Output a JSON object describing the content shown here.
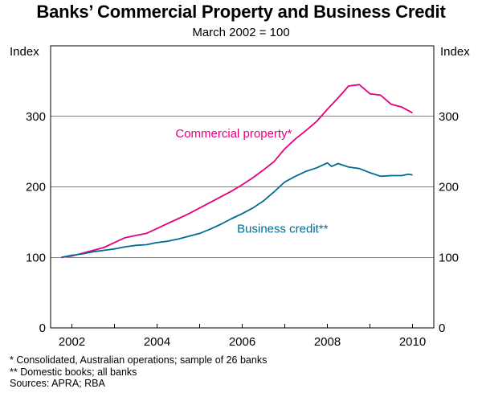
{
  "chart_data": {
    "type": "line",
    "title": "Banks’ Commercial Property and Business Credit",
    "subtitle": "March 2002 = 100",
    "ylabel_left": "Index",
    "ylabel_right": "Index",
    "xlim": [
      2001.5,
      2010.5
    ],
    "ylim": [
      0,
      400
    ],
    "yticks": [
      0,
      100,
      200,
      300
    ],
    "xticks": [
      2002,
      2004,
      2006,
      2008,
      2010
    ],
    "grid": true,
    "series": [
      {
        "name": "Commercial property*",
        "color": "#e5007e",
        "x": [
          2001.75,
          2002.0,
          2002.25,
          2002.5,
          2002.75,
          2003.0,
          2003.25,
          2003.5,
          2003.75,
          2004.0,
          2004.25,
          2004.5,
          2004.75,
          2005.0,
          2005.25,
          2005.5,
          2005.75,
          2006.0,
          2006.25,
          2006.5,
          2006.75,
          2007.0,
          2007.25,
          2007.5,
          2007.75,
          2008.0,
          2008.25,
          2008.5,
          2008.75,
          2009.0,
          2009.25,
          2009.5,
          2009.75,
          2010.0
        ],
        "values": [
          100,
          102,
          106,
          110,
          114,
          121,
          128,
          131,
          134,
          141,
          148,
          155,
          162,
          170,
          178,
          186,
          194,
          203,
          213,
          224,
          236,
          254,
          268,
          280,
          293,
          310,
          326,
          343,
          345,
          332,
          330,
          317,
          313,
          305
        ]
      },
      {
        "name": "Business credit**",
        "color": "#006c93",
        "x": [
          2001.75,
          2002.0,
          2002.25,
          2002.5,
          2002.75,
          2003.0,
          2003.25,
          2003.5,
          2003.75,
          2004.0,
          2004.25,
          2004.5,
          2004.75,
          2005.0,
          2005.25,
          2005.5,
          2005.75,
          2006.0,
          2006.25,
          2006.5,
          2006.75,
          2007.0,
          2007.25,
          2007.5,
          2007.75,
          2008.0,
          2008.1,
          2008.25,
          2008.5,
          2008.75,
          2009.0,
          2009.25,
          2009.5,
          2009.75,
          2009.9,
          2010.0
        ],
        "values": [
          100,
          103,
          105,
          108,
          110,
          112,
          115,
          117,
          118,
          121,
          123,
          126,
          130,
          134,
          140,
          147,
          155,
          162,
          170,
          180,
          193,
          207,
          215,
          222,
          227,
          234,
          229,
          233,
          228,
          226,
          220,
          215,
          216,
          216,
          218,
          217
        ]
      }
    ],
    "annotations": [
      {
        "text": "Commercial property*",
        "x": 2005.8,
        "y": 270,
        "color": "#e5007e"
      },
      {
        "text": "Business credit**",
        "x": 2006.95,
        "y": 135,
        "color": "#006c93"
      }
    ],
    "notes": [
      "*   Consolidated, Australian operations; sample of 26 banks",
      "** Domestic books; all banks",
      "Sources: APRA; RBA"
    ]
  }
}
